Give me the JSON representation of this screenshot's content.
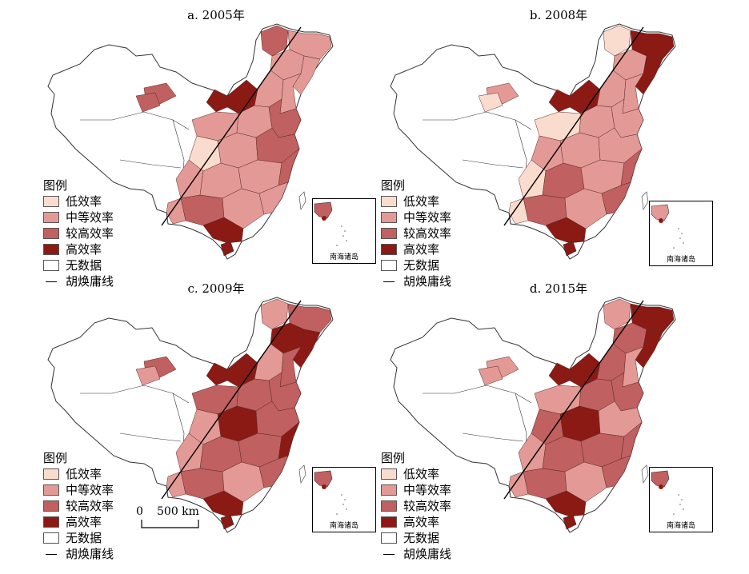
{
  "panels": [
    {
      "title": "a. 2005年"
    },
    {
      "title": "b. 2008年"
    },
    {
      "title": "c. 2009年"
    },
    {
      "title": "d. 2015年"
    }
  ],
  "legend": {
    "heading": "图例",
    "items": [
      {
        "label": "低效率",
        "color": "#f9dccd"
      },
      {
        "label": "中等效率",
        "color": "#e39a96"
      },
      {
        "label": "较高效率",
        "color": "#c06060"
      },
      {
        "label": "高效率",
        "color": "#8b1a14"
      },
      {
        "label": "无数据",
        "color": "#ffffff"
      }
    ],
    "line_label": "胡焕庸线"
  },
  "inset_label": "南海诸岛",
  "scale": {
    "zero": "0",
    "distance": "500 km"
  },
  "colors": {
    "low": "#f9dccd",
    "mid": "#e39a96",
    "high": "#c06060",
    "top": "#8b1a14",
    "none": "#ffffff",
    "outline": "#333333"
  }
}
